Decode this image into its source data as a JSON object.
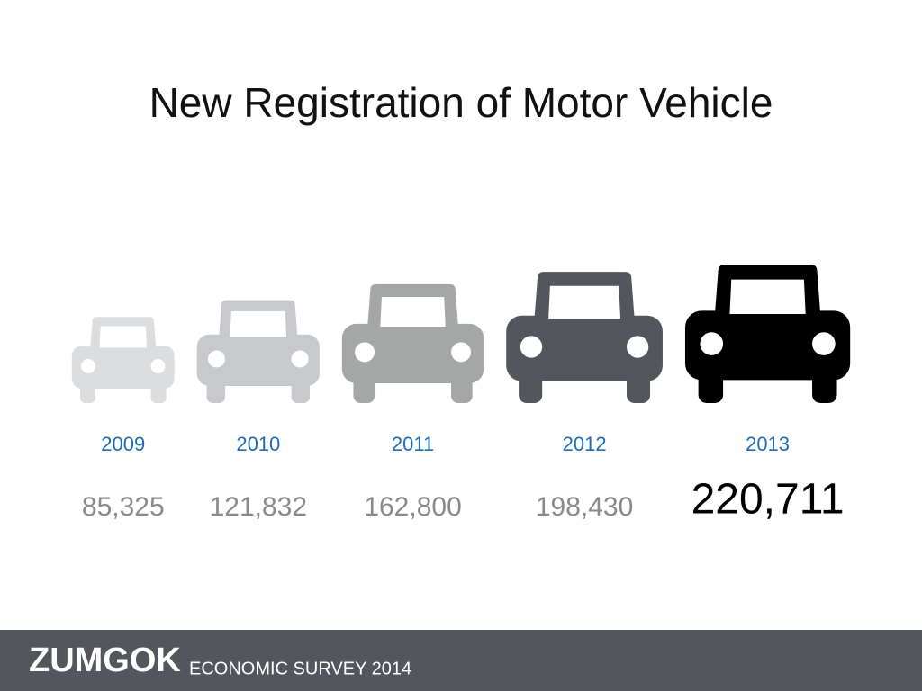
{
  "chart_data": {
    "type": "pictograph",
    "title": "New Registration of Motor Vehicle",
    "categories": [
      "2009",
      "2010",
      "2011",
      "2012",
      "2013"
    ],
    "values": [
      85325,
      121832,
      162800,
      198430,
      220711
    ],
    "value_labels": [
      "85,325",
      "121,832",
      "162,800",
      "198,430",
      "220,711"
    ],
    "colors": [
      "#dcdddf",
      "#c8c9cc",
      "#a5a7a7",
      "#53565c",
      "#000000"
    ]
  },
  "footer": {
    "brand": "ZUMGOK",
    "subtitle": "ECONOMIC SURVEY 2014"
  }
}
